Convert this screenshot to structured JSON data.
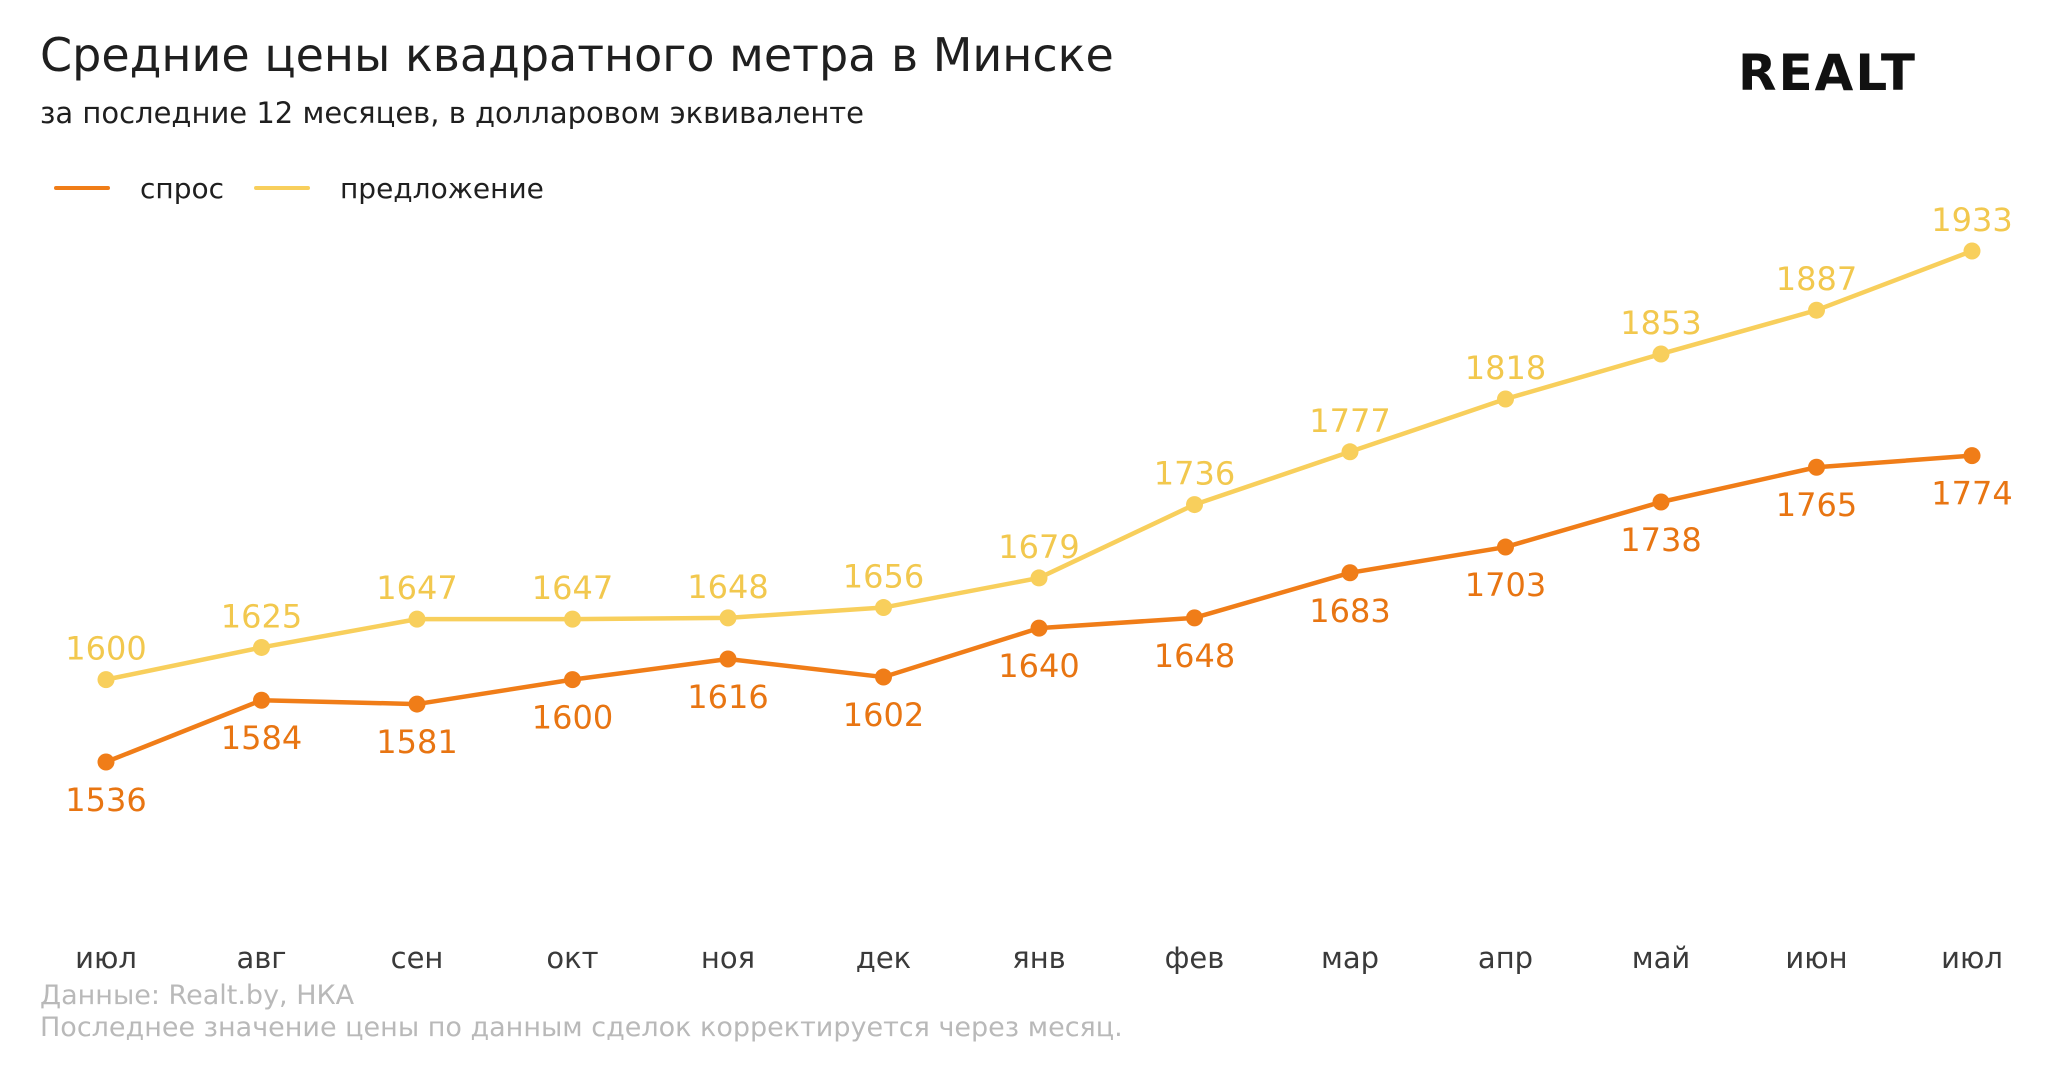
{
  "header": {
    "title": "Средние цены квадратного метра в Минске",
    "subtitle": "за последние 12 месяцев, в долларовом эквиваленте",
    "logo_text": "REALT"
  },
  "legend": {
    "demand_label": "спрос",
    "supply_label": "предложение"
  },
  "footnote": {
    "source": "Данные: Realt.by, НКА",
    "note": "Последнее значение цены по данным сделок корректируется через месяц."
  },
  "colors": {
    "demand": "#f07d18",
    "supply": "#f8cf5c",
    "demand_label": "#e87512",
    "supply_label": "#f2c84e",
    "axis_label": "#3a3a3a"
  },
  "chart_data": {
    "type": "line",
    "title": "Средние цены квадратного метра в Минске",
    "subtitle": "за последние 12 месяцев, в долларовом эквиваленте",
    "xlabel": "",
    "ylabel": "",
    "categories": [
      "июл",
      "авг",
      "сен",
      "окт",
      "ноя",
      "дек",
      "янв",
      "фев",
      "мар",
      "апр",
      "май",
      "июн",
      "июл"
    ],
    "series": [
      {
        "name": "спрос",
        "values": [
          1536,
          1584,
          1581,
          1600,
          1616,
          1602,
          1640,
          1648,
          1683,
          1703,
          1738,
          1765,
          1774
        ],
        "color": "#f07d18",
        "labels_position": "below"
      },
      {
        "name": "предложение",
        "values": [
          1600,
          1625,
          1647,
          1647,
          1648,
          1656,
          1679,
          1736,
          1777,
          1818,
          1853,
          1887,
          1933
        ],
        "color": "#f8cf5c",
        "labels_position": "above"
      }
    ],
    "ylim": [
      1300,
      2000
    ],
    "grid": false,
    "legend_position": "top-left",
    "y_axis_visible": false
  }
}
